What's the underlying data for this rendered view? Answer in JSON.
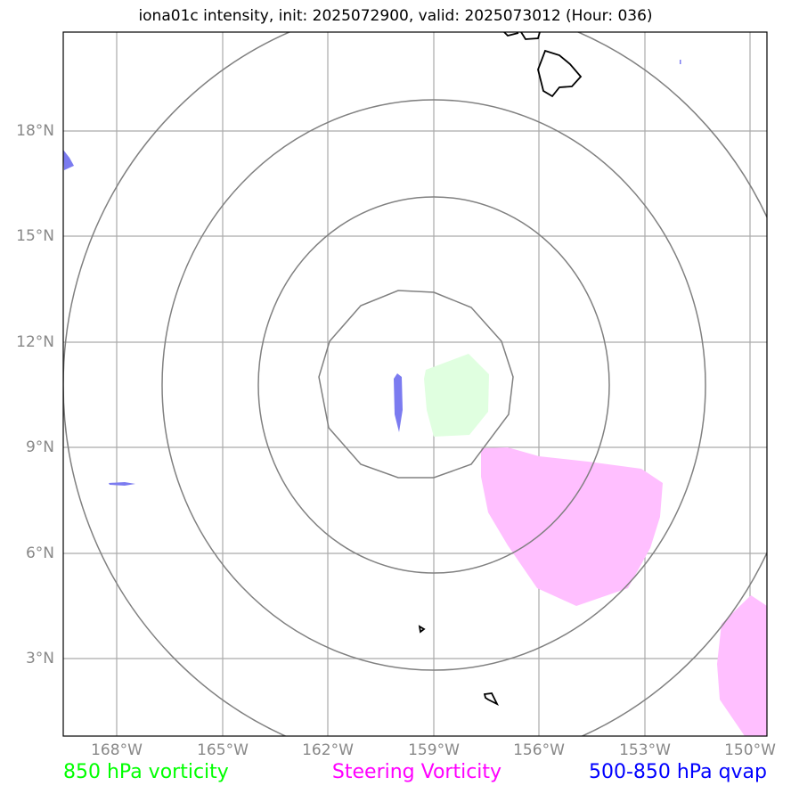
{
  "title": "iona01c intensity, init: 2025072900, valid: 2025073012 (Hour: 036)",
  "lon_ticks": [
    "168°W",
    "165°W",
    "162°W",
    "159°W",
    "156°W",
    "153°W",
    "150°W"
  ],
  "lat_ticks": [
    "18°N",
    "15°N",
    "12°N",
    "9°N",
    "6°N",
    "3°N"
  ],
  "legend": {
    "green": "850 hPa vorticity",
    "magenta": "Steering Vorticity",
    "blue": "500-850 hPa qvap"
  },
  "colors": {
    "green_fill": "#e0ffe0",
    "magenta_fill": "#ffbfff",
    "blue_fill": "#7b7bf0",
    "green_text": "#00ff00",
    "magenta_text": "#ff00ff",
    "blue_text": "#0000ff",
    "grid": "#aaaaaa",
    "rings": "#808080"
  }
}
